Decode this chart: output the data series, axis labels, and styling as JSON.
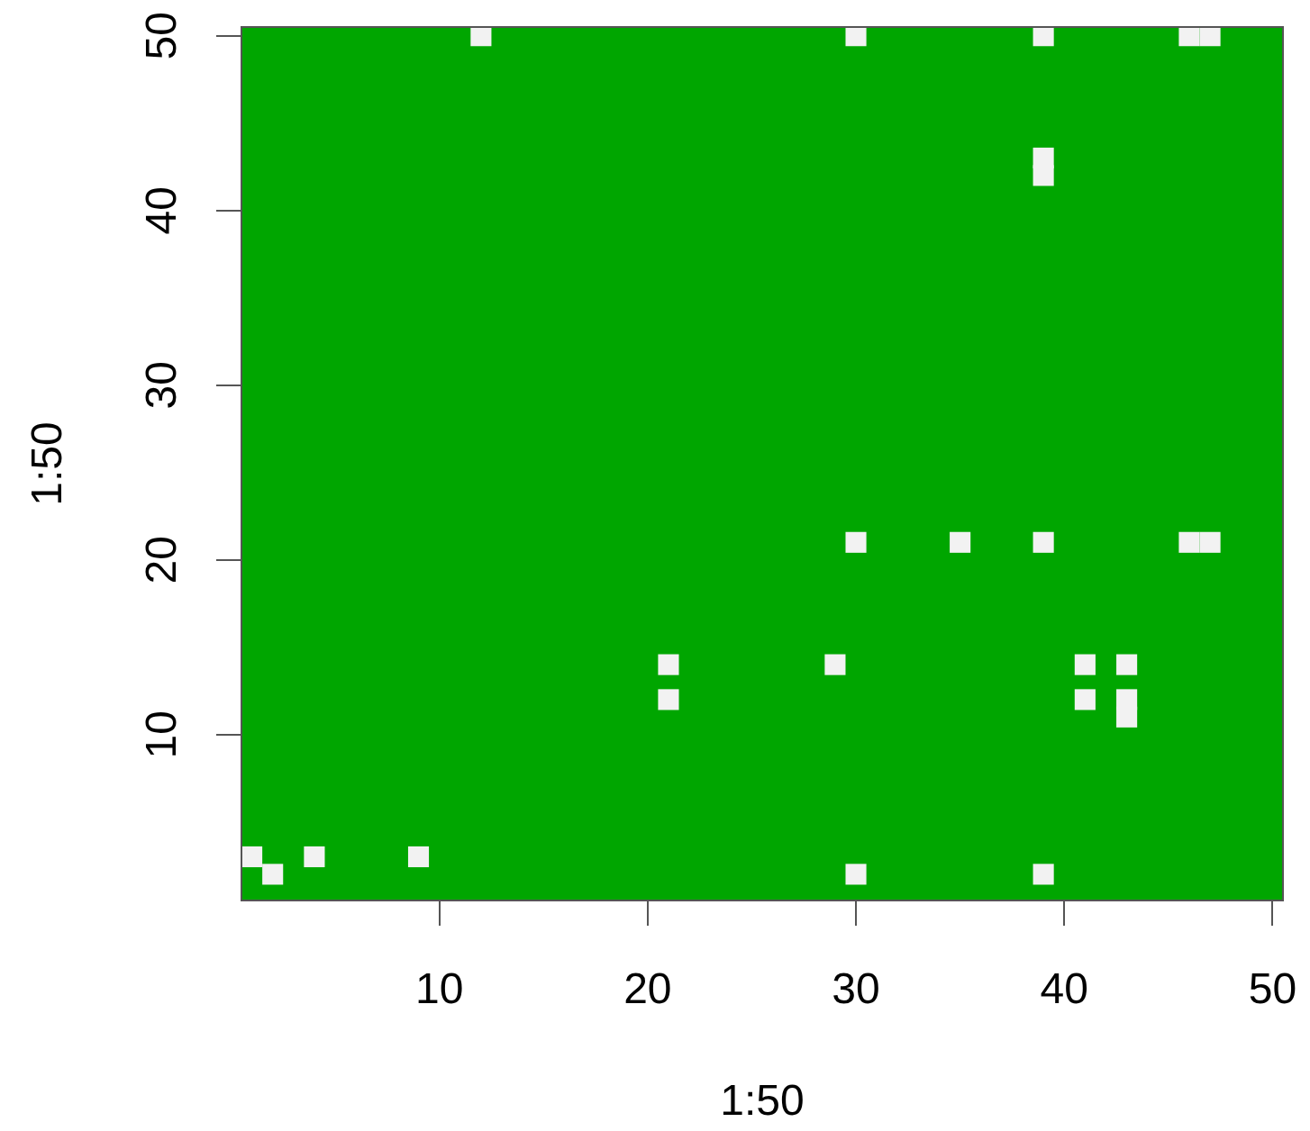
{
  "chart_data": {
    "type": "scatter",
    "xlabel": "1:50",
    "ylabel": "1:50",
    "x": [
      12,
      30,
      39,
      46,
      47,
      39,
      39,
      30,
      35,
      39,
      46,
      47,
      21,
      29,
      41,
      43,
      21,
      41,
      43,
      43,
      1,
      4,
      9,
      2,
      30,
      39
    ],
    "values": [
      50,
      50,
      50,
      50,
      50,
      43,
      42,
      21,
      21,
      21,
      21,
      21,
      14,
      14,
      14,
      14,
      12,
      12,
      12,
      11,
      3,
      3,
      3,
      2,
      2,
      2
    ],
    "color": "#f2f2f2",
    "marker": "square",
    "xlim": [
      0.5,
      50.5
    ],
    "ylim": [
      0.5,
      50.5
    ],
    "xticks": [
      10,
      20,
      30,
      40,
      50
    ],
    "yticks": [
      10,
      20,
      30,
      40,
      50
    ]
  }
}
